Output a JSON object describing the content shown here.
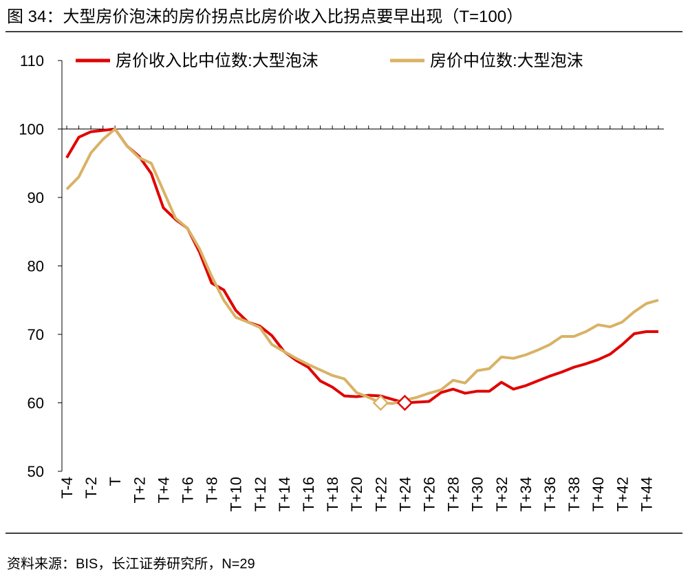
{
  "chart_data": {
    "type": "line",
    "title": "图 34：大型房价泡沫的房价拐点比房价收入比拐点要早出现（T=100）",
    "source": "资料来源：BIS，长江证券研究所，N=29",
    "categories": [
      "T-4",
      null,
      "T-2",
      null,
      "T",
      null,
      "T+2",
      null,
      "T+4",
      null,
      "T+6",
      null,
      "T+8",
      null,
      "T+10",
      null,
      "T+12",
      null,
      "T+14",
      null,
      "T+16",
      null,
      "T+18",
      null,
      "T+20",
      null,
      "T+22",
      null,
      "T+24",
      null,
      "T+26",
      null,
      "T+28",
      null,
      "T+30",
      null,
      "T+32",
      null,
      "T+34",
      null,
      "T+36",
      null,
      "T+38",
      null,
      "T+40",
      null,
      "T+42",
      null,
      "T+44",
      null
    ],
    "series": [
      {
        "name": "房价收入比中位数:大型泡沫",
        "color": "#e00000",
        "marker_index": 28,
        "values": [
          95.8,
          98.8,
          99.6,
          99.8,
          100,
          97.5,
          96,
          93.5,
          88.5,
          86.8,
          85.5,
          82,
          77.5,
          76.5,
          73.5,
          71.8,
          71.2,
          69.8,
          67.5,
          66.2,
          65.2,
          63.2,
          62.3,
          61,
          60.9,
          61.1,
          61,
          60.5,
          60,
          60.1,
          60.2,
          61.5,
          62,
          61.4,
          61.7,
          61.7,
          63,
          62,
          62.5,
          63.2,
          63.9,
          64.5,
          65.2,
          65.7,
          66.3,
          67.1,
          68.5,
          70.1,
          70.4,
          70.4
        ]
      },
      {
        "name": "房价中位数:大型泡沫",
        "color": "#d9b265",
        "marker_index": 26,
        "values": [
          91.2,
          93,
          96.5,
          98.5,
          100,
          97.5,
          95.8,
          95,
          91,
          87,
          85.5,
          82.5,
          78.5,
          75,
          72.5,
          71.8,
          71,
          68.5,
          67.5,
          66.5,
          65.6,
          64.8,
          64,
          63.5,
          61.5,
          60.8,
          60,
          59.9,
          60.4,
          60.8,
          61.4,
          61.9,
          63.3,
          62.9,
          64.7,
          65,
          66.7,
          66.5,
          67,
          67.7,
          68.5,
          69.7,
          69.7,
          70.4,
          71.4,
          71.1,
          71.8,
          73.3,
          74.5,
          75
        ]
      }
    ],
    "ylim": [
      50,
      110
    ],
    "yticks": [
      50,
      60,
      70,
      80,
      90,
      100,
      110
    ],
    "x_axis_at": 100,
    "legend": "top-left"
  }
}
